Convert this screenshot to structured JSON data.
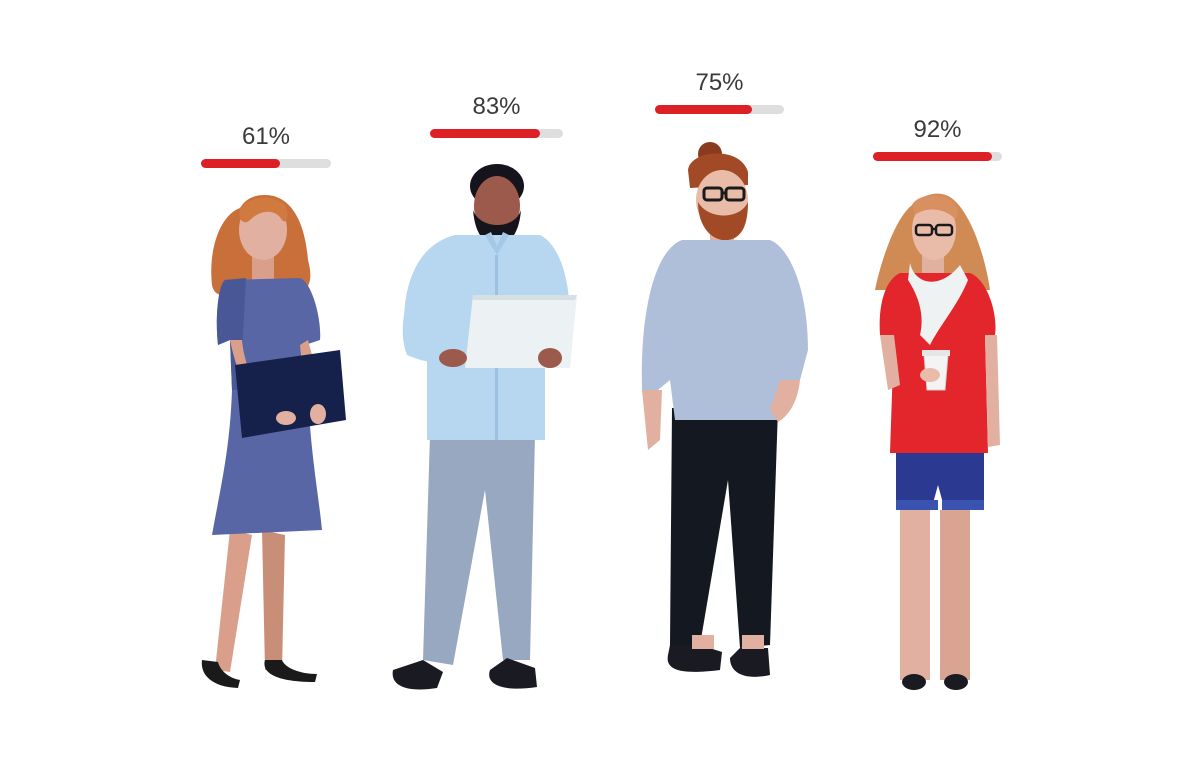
{
  "colors": {
    "accent": "#dd2026",
    "track": "#dedede",
    "text": "#3a3a3a"
  },
  "meters": [
    {
      "label": "61%",
      "value": 0.61
    },
    {
      "label": "83%",
      "value": 0.83
    },
    {
      "label": "75%",
      "value": 0.75
    },
    {
      "label": "92%",
      "value": 0.92
    }
  ]
}
